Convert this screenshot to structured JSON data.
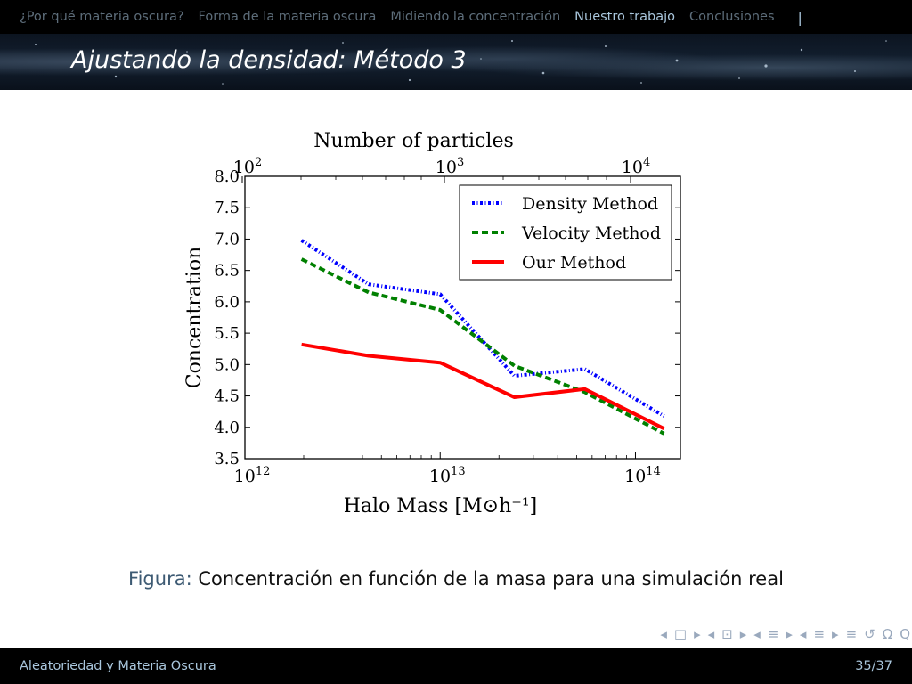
{
  "nav": {
    "items": [
      {
        "label": "¿Por qué materia oscura?",
        "active": false
      },
      {
        "label": "Forma de la materia oscura",
        "active": false
      },
      {
        "label": "Midiendo la concentración",
        "active": false
      },
      {
        "label": "Nuestro trabajo",
        "active": true
      },
      {
        "label": "Conclusiones",
        "active": false
      }
    ],
    "separator": "|"
  },
  "slide": {
    "title": "Ajustando la densidad: Método 3"
  },
  "caption": {
    "label": "Figura:",
    "text": "Concentración en función de la masa para una simulación real"
  },
  "footer": {
    "left": "Aleatoriedad y Materia Oscura",
    "right": "35/37"
  },
  "navsymbols": [
    "◂",
    "□",
    "▸",
    "◂",
    "⊡",
    "▸",
    "◂",
    "≡",
    "▸",
    "◂",
    "≡",
    "▸",
    "≡",
    "↺",
    "Ω",
    "Q"
  ],
  "chart_data": {
    "type": "line",
    "xlabel": "Halo Mass [M⊙h⁻¹]",
    "ylabel": "Concentration",
    "top_xlabel": "Number of particles",
    "xscale": "log",
    "xlim": [
      1000000000000.0,
      170000000000000.0
    ],
    "ylim": [
      3.5,
      8.0
    ],
    "xticks": [
      {
        "base": "10",
        "exp": "12",
        "value": 1000000000000.0
      },
      {
        "base": "10",
        "exp": "13",
        "value": 10000000000000.0
      },
      {
        "base": "10",
        "exp": "14",
        "value": 100000000000000.0
      }
    ],
    "top_xticks": [
      {
        "base": "10",
        "exp": "2"
      },
      {
        "base": "10",
        "exp": "3"
      },
      {
        "base": "10",
        "exp": "4"
      }
    ],
    "yticks": [
      "3.5",
      "4.0",
      "4.5",
      "5.0",
      "5.5",
      "6.0",
      "6.5",
      "7.0",
      "7.5",
      "8.0"
    ],
    "legend_position": "top-right",
    "x": [
      1950000000000.0,
      4300000000000.0,
      10000000000000.0,
      24000000000000.0,
      55000000000000.0,
      140000000000000.0
    ],
    "series": [
      {
        "name": "Density Method",
        "color": "#0000ff",
        "style": "dashdot",
        "values": [
          6.98,
          6.28,
          6.12,
          4.82,
          4.93,
          4.18
        ]
      },
      {
        "name": "Velocity Method",
        "color": "#008000",
        "style": "dashed",
        "values": [
          6.68,
          6.15,
          5.87,
          4.98,
          4.56,
          3.9
        ]
      },
      {
        "name": "Our Method",
        "color": "#ff0000",
        "style": "solid",
        "values": [
          5.32,
          5.14,
          5.03,
          4.48,
          4.61,
          3.98
        ]
      }
    ]
  }
}
